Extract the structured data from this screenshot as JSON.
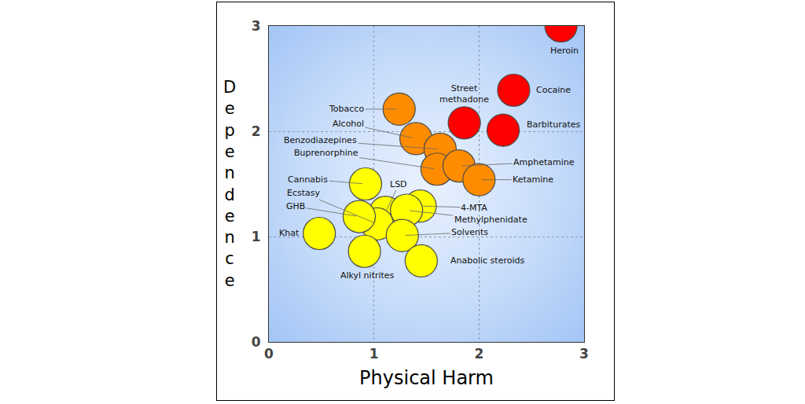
{
  "chart_data": {
    "type": "scatter",
    "x_label": "Physical Harm",
    "y_label": "Dependence",
    "labels": [
      "Heroin",
      "Cocaine",
      "Street methadone",
      "Barbiturates",
      "Tobacco",
      "Alcohol",
      "Benzodiazepines",
      "Buprenorphine",
      "Amphetamine",
      "Ketamine",
      "Cannabis",
      "LSD",
      "4-MTA",
      "Methylphenidate",
      "Ecstasy",
      "GHB",
      "Solvents",
      "Khat",
      "Alkyl nitrites",
      "Anabolic steroids"
    ],
    "x": [
      2.78,
      2.33,
      1.86,
      2.23,
      1.24,
      1.4,
      1.63,
      1.6,
      1.81,
      2.0,
      0.92,
      1.11,
      1.44,
      1.31,
      1.03,
      0.86,
      1.27,
      0.48,
      0.91,
      1.45
    ],
    "values": [
      3.0,
      2.39,
      2.08,
      2.01,
      2.21,
      1.93,
      1.83,
      1.64,
      1.67,
      1.54,
      1.5,
      1.23,
      1.29,
      1.25,
      1.12,
      1.19,
      1.01,
      1.03,
      0.86,
      0.77
    ],
    "colors": [
      "#ff0000",
      "#ff0000",
      "#ff0000",
      "#ff0000",
      "#ff8c00",
      "#ff8c00",
      "#ff8c00",
      "#ff8c00",
      "#ff8c00",
      "#ff8c00",
      "#ffff00",
      "#ffff00",
      "#ffff00",
      "#ffff00",
      "#ffff00",
      "#ffff00",
      "#ffff00",
      "#ffff00",
      "#ffff00",
      "#ffff00"
    ],
    "xlim": [
      0,
      3
    ],
    "ylim": [
      0,
      3
    ],
    "xticks": [
      0,
      1,
      2,
      3
    ],
    "yticks": [
      0,
      1,
      2,
      3
    ],
    "grid": true
  }
}
